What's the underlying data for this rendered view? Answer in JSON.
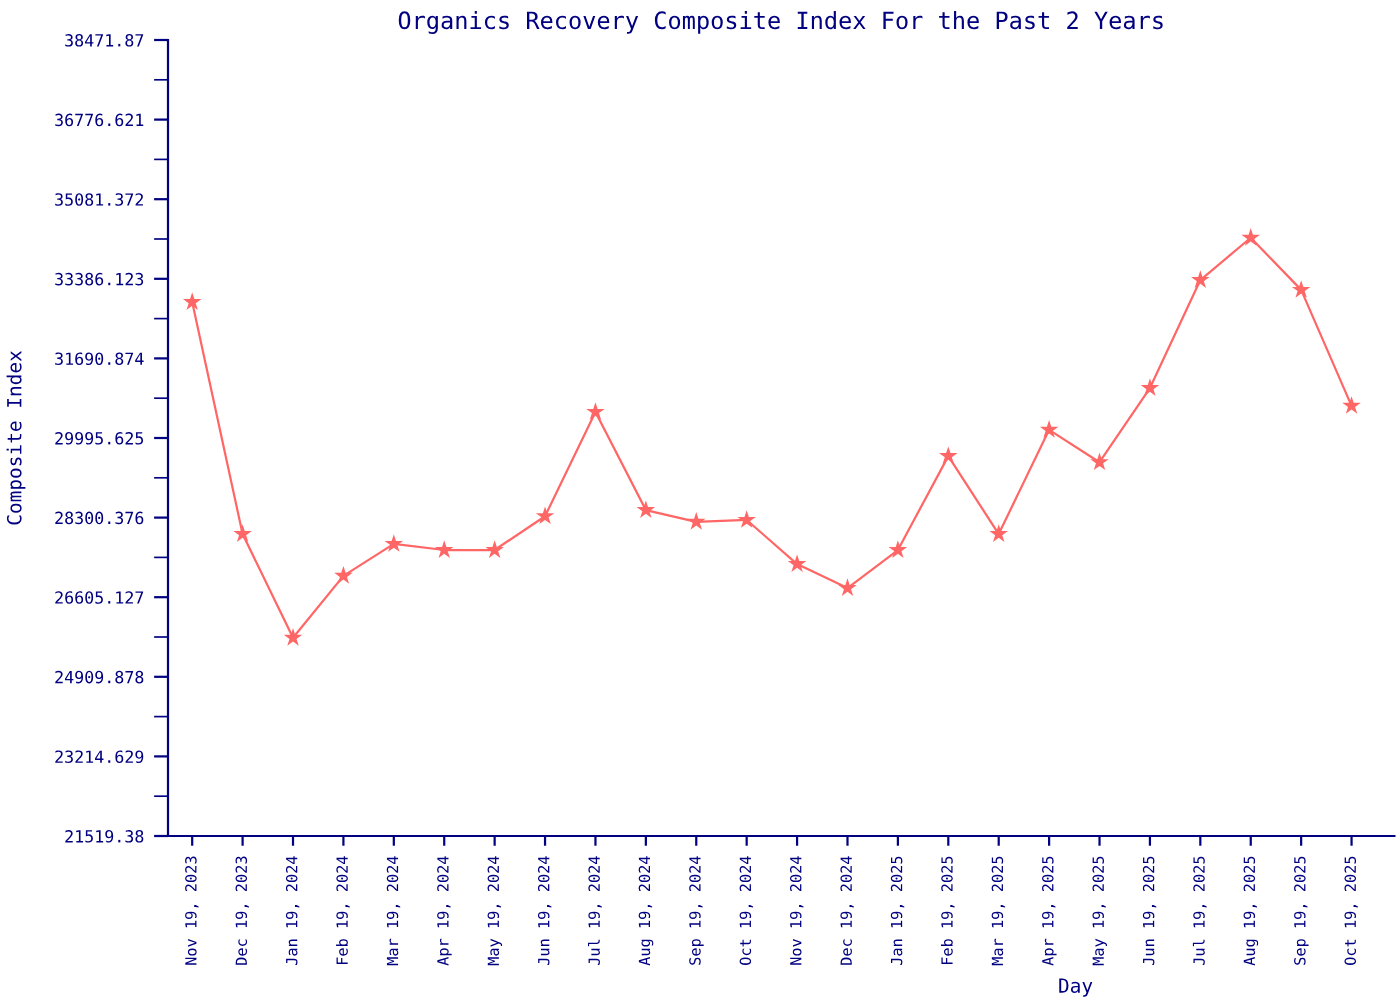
{
  "chart_data": {
    "type": "line",
    "title": "Organics Recovery Composite Index For the Past 2 Years",
    "xlabel": "Day",
    "ylabel": "Composite Index",
    "categories": [
      "Nov 19, 2023",
      "Dec 19, 2023",
      "Jan 19, 2024",
      "Feb 19, 2024",
      "Mar 19, 2024",
      "Apr 19, 2024",
      "May 19, 2024",
      "Jun 19, 2024",
      "Jul 19, 2024",
      "Aug 19, 2024",
      "Sep 19, 2024",
      "Oct 19, 2024",
      "Nov 19, 2024",
      "Dec 19, 2024",
      "Jan 19, 2025",
      "Feb 19, 2025",
      "Mar 19, 2025",
      "Apr 19, 2025",
      "May 19, 2025",
      "Jun 19, 2025",
      "Jul 19, 2025",
      "Aug 19, 2025",
      "Sep 19, 2025",
      "Oct 19, 2025"
    ],
    "series": [
      {
        "color": "#ff6666",
        "values": [
          32890,
          27950,
          25740,
          27060,
          27740,
          27610,
          27610,
          28330,
          30550,
          28460,
          28210,
          28250,
          27310,
          26800,
          27610,
          29610,
          27950,
          30170,
          29480,
          31060,
          33360,
          34260,
          33150,
          30680
        ]
      }
    ],
    "ylim": [
      21519.38,
      38471.87
    ],
    "yticks": [
      21519.38,
      23214.629,
      24909.878,
      26605.127,
      28300.376,
      29995.625,
      31690.874,
      33386.123,
      35081.372,
      36776.621,
      38471.87
    ],
    "grid": false,
    "legend": false,
    "marker": "star",
    "line_style": "solid"
  }
}
